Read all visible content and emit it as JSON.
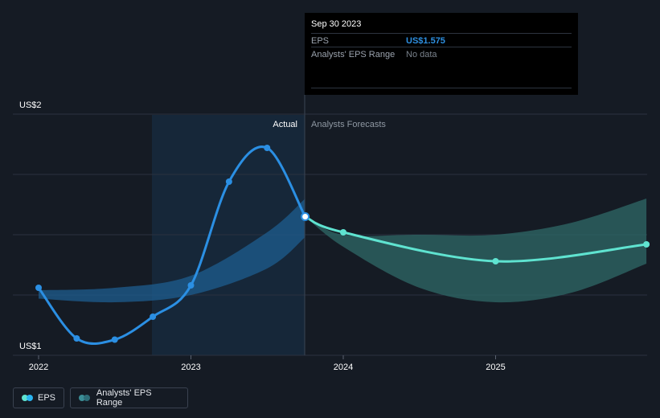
{
  "chart_data": {
    "type": "line",
    "title": "",
    "xlabel": "",
    "ylabel": "",
    "ylim": [
      1.0,
      2.0
    ],
    "y_tick_labels": [
      "US$2",
      "US$1"
    ],
    "x_tick_labels": [
      "2022",
      "2023",
      "2024",
      "2025"
    ],
    "period_labels": {
      "actual": "Actual",
      "forecast": "Analysts Forecasts"
    },
    "series": [
      {
        "name": "EPS",
        "kind": "actual",
        "x": [
          2022.0,
          2022.25,
          2022.5,
          2022.75,
          2023.0,
          2023.25,
          2023.5,
          2023.75
        ],
        "values": [
          1.28,
          1.07,
          1.065,
          1.16,
          1.29,
          1.72,
          1.86,
          1.575
        ]
      },
      {
        "name": "EPS Forecast",
        "kind": "forecast",
        "x": [
          2023.75,
          2024.0,
          2025.0,
          2025.99
        ],
        "values": [
          1.575,
          1.51,
          1.39,
          1.46
        ]
      }
    ],
    "ranges": [
      {
        "name": "Analysts' EPS Range",
        "x": [
          2022.0,
          2022.5,
          2023.0,
          2023.5,
          2023.75
        ],
        "low": [
          1.235,
          1.22,
          1.25,
          1.36,
          1.49
        ],
        "high": [
          1.27,
          1.28,
          1.33,
          1.51,
          1.65
        ]
      },
      {
        "name": "Analysts' EPS Range Forecast",
        "x": [
          2023.75,
          2024.0,
          2024.5,
          2025.0,
          2025.5,
          2025.99
        ],
        "low": [
          1.575,
          1.45,
          1.28,
          1.22,
          1.26,
          1.38
        ],
        "high": [
          1.575,
          1.5,
          1.5,
          1.5,
          1.55,
          1.65
        ]
      }
    ],
    "legend": [
      {
        "label": "EPS",
        "color": "#2ab4f0"
      },
      {
        "label": "Analysts' EPS Range",
        "color": "#2e6d78"
      }
    ],
    "colors": {
      "actual_line": "#2b8fe3",
      "forecast_line": "#5fe3d0",
      "actual_band": "#1d5d8f",
      "forecast_band": "#2f6a67",
      "grid": "#2a3240",
      "past_highlight": "#16293c"
    }
  },
  "tooltip": {
    "date": "Sep 30 2023",
    "rows": [
      {
        "key": "EPS",
        "value": "US$1.575",
        "color": "#2e8fe0"
      },
      {
        "key": "Analysts' EPS Range",
        "value": "No data",
        "color": "#7a828c"
      }
    ]
  }
}
